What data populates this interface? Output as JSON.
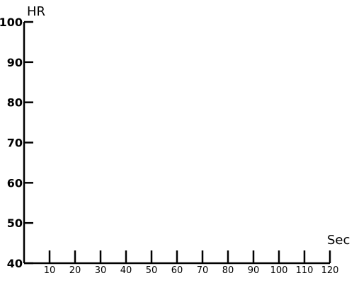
{
  "chart_data": {
    "type": "line",
    "title": "",
    "xlabel": "Sec",
    "ylabel": "HR",
    "xlim": [
      0,
      120
    ],
    "ylim": [
      40,
      100
    ],
    "x_ticks": [
      10,
      20,
      30,
      40,
      50,
      60,
      70,
      80,
      90,
      100,
      110,
      120
    ],
    "y_ticks": [
      40,
      50,
      60,
      70,
      80,
      90,
      100
    ],
    "series": [],
    "grid": false,
    "colors": {
      "axis": "#000000",
      "background": "#ffffff"
    }
  }
}
